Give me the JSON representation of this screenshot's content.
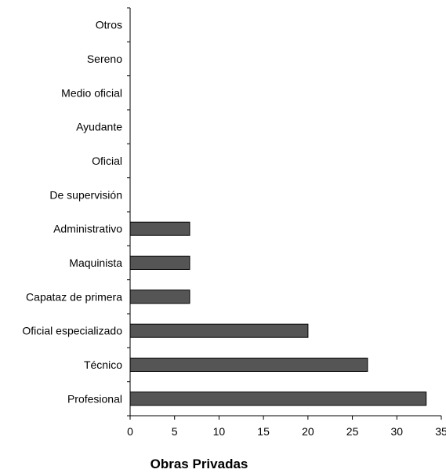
{
  "chart_data": {
    "type": "bar",
    "orientation": "horizontal",
    "title": "",
    "xlabel": "Obras Privadas",
    "ylabel": "",
    "categories": [
      "Otros",
      "Sereno",
      "Medio oficial",
      "Ayudante",
      "Oficial",
      "De supervisión",
      "Administrativo",
      "Maquinista",
      "Capataz de primera",
      "Oficial especializado",
      "Técnico",
      "Profesional"
    ],
    "values": [
      0,
      0,
      0,
      0,
      0,
      0,
      6.7,
      6.7,
      6.7,
      20.0,
      26.7,
      33.3
    ],
    "xlim": [
      0,
      35
    ],
    "xticks": [
      "0",
      "5",
      "10",
      "15",
      "20",
      "25",
      "30",
      "35"
    ],
    "grid": false,
    "legend": "none",
    "bar_color": "#555555",
    "bar_edge_color": "#000000"
  }
}
